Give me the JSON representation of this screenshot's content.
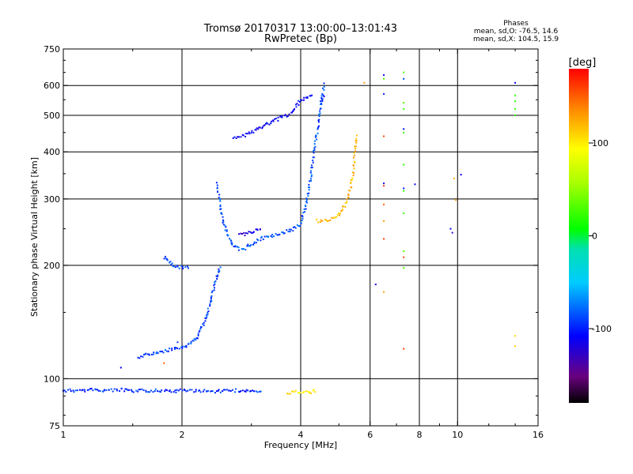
{
  "chart_data": {
    "type": "scatter",
    "title": "Tromsø 20170317 13:00:00–13:01:43",
    "subtitle": "RwPretec (Bp)",
    "xlabel": "Frequency [MHz]",
    "ylabel": "Stationary phase Virtual Height [km]",
    "x_scale": "log",
    "y_scale": "log",
    "xlim": [
      1,
      16
    ],
    "ylim": [
      75,
      750
    ],
    "x_ticks": [
      1,
      2,
      4,
      6,
      8,
      10,
      16
    ],
    "x_tick_labels": [
      "1",
      "2",
      "4",
      "6",
      "8",
      "10",
      "16"
    ],
    "y_ticks": [
      75,
      100,
      200,
      300,
      400,
      500,
      600,
      750
    ],
    "y_tick_labels": [
      "75",
      "100",
      "200",
      "300",
      "400",
      "500",
      "600",
      "750"
    ],
    "grid": true,
    "phase_info": {
      "heading": "Phases",
      "o_line": "mean, sd,O: -76.5, 14.6",
      "x_line": "mean, sd,X: 104.5, 15.9"
    },
    "colorbar": {
      "label": "[deg]",
      "range": [
        -180,
        180
      ],
      "ticks": [
        100,
        0,
        -100
      ],
      "tick_labels": [
        "100",
        "0",
        "-100"
      ]
    },
    "traces": [
      {
        "phase": -95,
        "points": [
          [
            1.0,
            93
          ],
          [
            1.1,
            93
          ],
          [
            1.2,
            93.5
          ],
          [
            1.3,
            93
          ],
          [
            1.4,
            93.5
          ],
          [
            1.5,
            92.5
          ],
          [
            1.6,
            93
          ],
          [
            1.7,
            93
          ],
          [
            1.8,
            93
          ],
          [
            1.9,
            92.5
          ],
          [
            2.0,
            93
          ],
          [
            2.2,
            93
          ],
          [
            2.4,
            92.5
          ],
          [
            2.6,
            93
          ],
          [
            2.8,
            93
          ],
          [
            3.0,
            92.5
          ],
          [
            3.2,
            92
          ]
        ]
      },
      {
        "phase": -90,
        "points": [
          [
            1.55,
            114
          ],
          [
            1.7,
            117
          ],
          [
            1.85,
            119
          ],
          [
            2.0,
            121
          ],
          [
            2.1,
            124
          ],
          [
            2.2,
            130
          ],
          [
            2.3,
            145
          ],
          [
            2.38,
            165
          ],
          [
            2.45,
            185
          ],
          [
            2.5,
            200
          ]
        ]
      },
      {
        "phase": -90,
        "points": [
          [
            1.8,
            210
          ],
          [
            1.9,
            200
          ],
          [
            2.0,
            197
          ],
          [
            2.1,
            197
          ]
        ]
      },
      {
        "phase": -85,
        "points": [
          [
            2.45,
            330
          ],
          [
            2.5,
            290
          ],
          [
            2.55,
            260
          ],
          [
            2.6,
            245
          ],
          [
            2.7,
            225
          ],
          [
            2.8,
            220
          ],
          [
            2.9,
            222
          ],
          [
            3.0,
            228
          ],
          [
            3.2,
            236
          ],
          [
            3.4,
            240
          ],
          [
            3.6,
            244
          ],
          [
            3.8,
            248
          ],
          [
            4.0,
            258
          ],
          [
            4.1,
            280
          ],
          [
            4.2,
            320
          ],
          [
            4.3,
            380
          ],
          [
            4.4,
            450
          ],
          [
            4.5,
            530
          ],
          [
            4.6,
            610
          ]
        ]
      },
      {
        "phase": -110,
        "points": [
          [
            2.7,
            435
          ],
          [
            2.8,
            438
          ],
          [
            3.0,
            450
          ],
          [
            3.2,
            468
          ],
          [
            3.4,
            482
          ],
          [
            3.6,
            495
          ],
          [
            3.8,
            505
          ],
          [
            4.0,
            550
          ],
          [
            4.3,
            570
          ]
        ]
      },
      {
        "phase": 120,
        "points": [
          [
            4.4,
            262
          ],
          [
            4.6,
            262
          ],
          [
            4.8,
            265
          ],
          [
            5.0,
            272
          ],
          [
            5.2,
            290
          ],
          [
            5.35,
            320
          ],
          [
            5.45,
            360
          ],
          [
            5.5,
            410
          ],
          [
            5.55,
            445
          ]
        ]
      },
      {
        "phase": 100,
        "points": [
          [
            3.7,
            92
          ],
          [
            3.9,
            92
          ],
          [
            4.2,
            92
          ],
          [
            4.4,
            93
          ]
        ]
      },
      {
        "phase": -120,
        "points": [
          [
            2.8,
            240
          ],
          [
            3.0,
            245
          ],
          [
            3.2,
            250
          ]
        ]
      },
      {
        "phase": -100,
        "points": [
          [
            4.5,
            540
          ],
          [
            4.6,
            560
          ]
        ]
      }
    ],
    "scattered_points": [
      {
        "x": 1.4,
        "y": 107,
        "phase": -110
      },
      {
        "x": 1.8,
        "y": 110,
        "phase": 150
      },
      {
        "x": 1.95,
        "y": 125,
        "phase": -90
      },
      {
        "x": 5.8,
        "y": 610,
        "phase": 130
      },
      {
        "x": 6.2,
        "y": 178,
        "phase": -120
      },
      {
        "x": 6.5,
        "y": 640,
        "phase": -110
      },
      {
        "x": 6.5,
        "y": 625,
        "phase": 30
      },
      {
        "x": 6.5,
        "y": 570,
        "phase": -100
      },
      {
        "x": 6.5,
        "y": 440,
        "phase": 160
      },
      {
        "x": 6.5,
        "y": 330,
        "phase": -110
      },
      {
        "x": 6.5,
        "y": 325,
        "phase": 160
      },
      {
        "x": 6.5,
        "y": 290,
        "phase": 150
      },
      {
        "x": 6.5,
        "y": 262,
        "phase": 130
      },
      {
        "x": 6.5,
        "y": 235,
        "phase": 160
      },
      {
        "x": 6.5,
        "y": 170,
        "phase": 130
      },
      {
        "x": 7.3,
        "y": 650,
        "phase": 30
      },
      {
        "x": 7.3,
        "y": 625,
        "phase": -90
      },
      {
        "x": 7.3,
        "y": 540,
        "phase": 30
      },
      {
        "x": 7.3,
        "y": 520,
        "phase": 20
      },
      {
        "x": 7.3,
        "y": 460,
        "phase": -110
      },
      {
        "x": 7.3,
        "y": 450,
        "phase": 20
      },
      {
        "x": 7.3,
        "y": 370,
        "phase": 20
      },
      {
        "x": 7.3,
        "y": 320,
        "phase": -100
      },
      {
        "x": 7.3,
        "y": 315,
        "phase": 20
      },
      {
        "x": 7.3,
        "y": 275,
        "phase": 20
      },
      {
        "x": 7.3,
        "y": 218,
        "phase": 30
      },
      {
        "x": 7.3,
        "y": 210,
        "phase": 160
      },
      {
        "x": 7.3,
        "y": 197,
        "phase": 30
      },
      {
        "x": 7.3,
        "y": 120,
        "phase": 160
      },
      {
        "x": 7.8,
        "y": 328,
        "phase": -110
      },
      {
        "x": 9.6,
        "y": 250,
        "phase": -110
      },
      {
        "x": 9.7,
        "y": 244,
        "phase": -130
      },
      {
        "x": 9.8,
        "y": 340,
        "phase": 120
      },
      {
        "x": 9.9,
        "y": 298,
        "phase": 130
      },
      {
        "x": 10.2,
        "y": 348,
        "phase": -110
      },
      {
        "x": 14.0,
        "y": 610,
        "phase": -110
      },
      {
        "x": 14.0,
        "y": 565,
        "phase": 20
      },
      {
        "x": 14.0,
        "y": 545,
        "phase": 20
      },
      {
        "x": 14.0,
        "y": 520,
        "phase": 20
      },
      {
        "x": 14.0,
        "y": 500,
        "phase": 20
      },
      {
        "x": 14.0,
        "y": 130,
        "phase": 110
      },
      {
        "x": 14.0,
        "y": 122,
        "phase": 110
      }
    ]
  }
}
